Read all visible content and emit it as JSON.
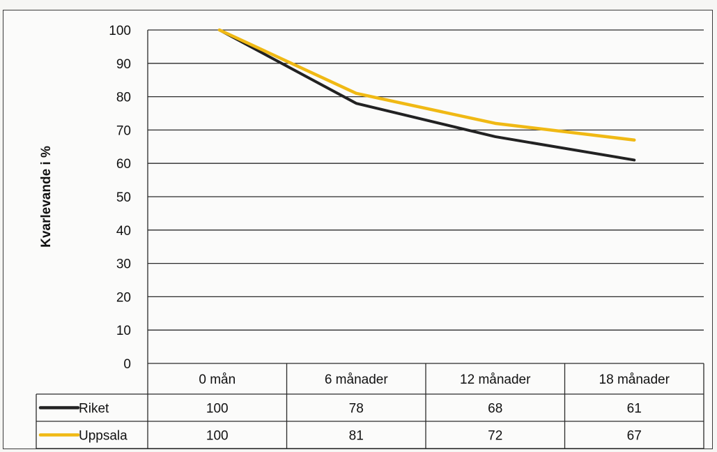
{
  "chart_data": {
    "type": "line",
    "ylabel": "Kvarlevande i %",
    "xlabel": "",
    "title": "",
    "categories": [
      "0 mån",
      "6 månader",
      "12 månader",
      "18 månader"
    ],
    "ylim": [
      0,
      100
    ],
    "yticks": [
      "0",
      "10",
      "20",
      "30",
      "40",
      "50",
      "60",
      "70",
      "80",
      "90",
      "100"
    ],
    "grid": true,
    "legend": "data-table",
    "series": [
      {
        "name": "Riket",
        "values": [
          100,
          78,
          68,
          61
        ],
        "color": "#222222"
      },
      {
        "name": "Uppsala",
        "values": [
          100,
          81,
          72,
          67
        ],
        "color": "#f0b914"
      }
    ]
  }
}
